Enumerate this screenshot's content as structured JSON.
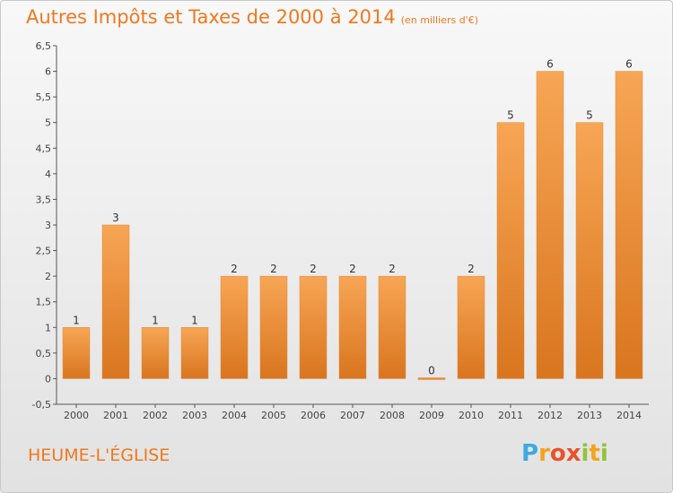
{
  "header": {
    "title": "Autres Impôts et Taxes de 2000 à 2014",
    "unit": "(en milliers d'€)"
  },
  "commune": "HEUME-L'ÉGLISE",
  "logo": {
    "letters": [
      "P",
      "r",
      "o",
      "x",
      "i",
      "t",
      "i"
    ]
  },
  "colors": {
    "accent": "#f0781e",
    "bar_top": "#f7a655",
    "bar_bottom": "#d9751f",
    "axis": "#555555"
  },
  "chart_data": {
    "type": "bar",
    "title": "Autres Impôts et Taxes de 2000 à 2014",
    "subtitle": "(en milliers d'€)",
    "xlabel": "",
    "ylabel": "",
    "categories": [
      "2000",
      "2001",
      "2002",
      "2003",
      "2004",
      "2005",
      "2006",
      "2007",
      "2008",
      "2009",
      "2010",
      "2011",
      "2012",
      "2013",
      "2014"
    ],
    "values": [
      1,
      3,
      1,
      1,
      2,
      2,
      2,
      2,
      2,
      0,
      2,
      5,
      6,
      5,
      6
    ],
    "data_labels": [
      "1",
      "3",
      "1",
      "1",
      "2",
      "2",
      "2",
      "2",
      "2",
      "0",
      "2",
      "5",
      "6",
      "5",
      "6"
    ],
    "ylim": [
      -0.5,
      6.5
    ],
    "yticks": [
      -0.5,
      0,
      0.5,
      1,
      1.5,
      2,
      2.5,
      3,
      3.5,
      4,
      4.5,
      5,
      5.5,
      6,
      6.5
    ],
    "ytick_labels": [
      "-0,5",
      "0",
      "0,5",
      "1",
      "1,5",
      "2",
      "2,5",
      "3",
      "3,5",
      "4",
      "4,5",
      "5",
      "5,5",
      "6",
      "6,5"
    ],
    "grid": false,
    "legend": "none"
  }
}
